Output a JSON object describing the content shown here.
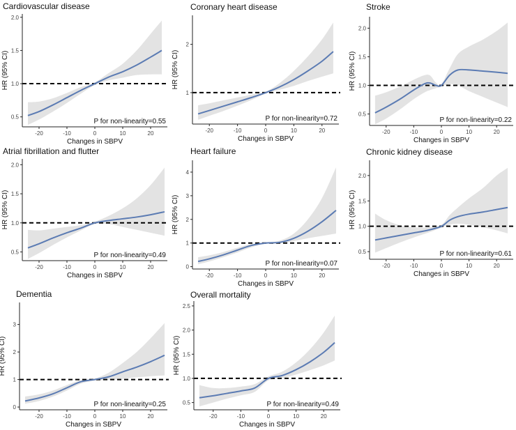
{
  "figure": {
    "line_color": "#5b7bb3",
    "band_color": "#e3e3e3",
    "ref_color": "#000000"
  },
  "chart_data": [
    {
      "type": "line",
      "title": "Cardiovascular disease",
      "xlabel": "Changes in SBPV",
      "ylabel": "HR (95% CI)",
      "xlim": [
        -26,
        26
      ],
      "ylim": [
        0.35,
        2.05
      ],
      "xticks": [
        -20,
        -10,
        0,
        10,
        20
      ],
      "yticks": [
        0.5,
        1.0,
        1.5,
        2.0
      ],
      "ytick_labels": [
        "0.5",
        "1.0",
        "1.5",
        "2.0"
      ],
      "ref_y": 1.0,
      "p_text": "P for non-linearity=0.55",
      "series": [
        {
          "name": "HR",
          "x": [
            -24,
            -20,
            -15,
            -10,
            -5,
            0,
            5,
            10,
            15,
            20,
            24
          ],
          "y": [
            0.52,
            0.58,
            0.68,
            0.79,
            0.9,
            1.0,
            1.1,
            1.18,
            1.28,
            1.4,
            1.5
          ]
        },
        {
          "name": "95% CI lower",
          "x": [
            -24,
            -20,
            -15,
            -10,
            -5,
            0,
            5,
            10,
            15,
            20,
            24
          ],
          "y": [
            0.38,
            0.46,
            0.58,
            0.71,
            0.85,
            0.98,
            1.05,
            1.09,
            1.13,
            1.14,
            1.14
          ]
        },
        {
          "name": "95% CI upper",
          "x": [
            -24,
            -20,
            -15,
            -10,
            -5,
            0,
            5,
            10,
            15,
            20,
            24
          ],
          "y": [
            0.72,
            0.73,
            0.78,
            0.86,
            0.95,
            1.02,
            1.16,
            1.3,
            1.5,
            1.75,
            1.95
          ]
        }
      ]
    },
    {
      "type": "line",
      "title": "Coronary heart disease",
      "xlabel": "Changes in SBPV",
      "ylabel": "HR (95% CI)",
      "xlim": [
        -26,
        26
      ],
      "ylim": [
        0.35,
        2.6
      ],
      "xticks": [
        -20,
        -10,
        0,
        10,
        20
      ],
      "yticks": [
        1,
        2
      ],
      "ytick_labels": [
        "1",
        "2"
      ],
      "ref_y": 1.0,
      "p_text": "P for non-linearity=0.72",
      "series": [
        {
          "name": "HR",
          "x": [
            -24,
            -20,
            -15,
            -10,
            -5,
            0,
            5,
            10,
            15,
            20,
            24
          ],
          "y": [
            0.56,
            0.63,
            0.72,
            0.81,
            0.9,
            1.0,
            1.12,
            1.27,
            1.45,
            1.65,
            1.85
          ]
        },
        {
          "name": "95% CI lower",
          "x": [
            -24,
            -20,
            -15,
            -10,
            -5,
            0,
            5,
            10,
            15,
            20,
            24
          ],
          "y": [
            0.44,
            0.52,
            0.62,
            0.73,
            0.85,
            0.98,
            1.06,
            1.14,
            1.24,
            1.33,
            1.4
          ]
        },
        {
          "name": "95% CI upper",
          "x": [
            -24,
            -20,
            -15,
            -10,
            -5,
            0,
            5,
            10,
            15,
            20,
            24
          ],
          "y": [
            0.74,
            0.78,
            0.84,
            0.9,
            0.96,
            1.02,
            1.2,
            1.45,
            1.75,
            2.1,
            2.45
          ]
        }
      ]
    },
    {
      "type": "line",
      "title": "Stroke",
      "xlabel": "Changes in SBPV",
      "ylabel": "HR (95% CI)",
      "xlim": [
        -26,
        26
      ],
      "ylim": [
        0.3,
        2.2
      ],
      "xticks": [
        -20,
        -10,
        0,
        10,
        20
      ],
      "yticks": [
        0.5,
        1.0,
        1.5,
        2.0
      ],
      "ytick_labels": [
        "0.5",
        "1.0",
        "1.5",
        "2.0"
      ],
      "ref_y": 1.0,
      "p_text": "P for non-linearity=0.22",
      "series": [
        {
          "name": "HR",
          "x": [
            -24,
            -20,
            -15,
            -10,
            -6,
            -4,
            -2,
            0,
            3,
            6,
            10,
            15,
            20,
            24
          ],
          "y": [
            0.52,
            0.62,
            0.76,
            0.92,
            1.03,
            1.04,
            1.0,
            1.0,
            1.18,
            1.27,
            1.27,
            1.25,
            1.23,
            1.21
          ]
        },
        {
          "name": "95% CI lower",
          "x": [
            -24,
            -20,
            -15,
            -10,
            -6,
            -4,
            -2,
            0,
            3,
            6,
            10,
            15,
            20,
            24
          ],
          "y": [
            0.32,
            0.42,
            0.58,
            0.76,
            0.88,
            0.92,
            0.95,
            0.98,
            1.02,
            1.0,
            0.9,
            0.8,
            0.7,
            0.62
          ]
        },
        {
          "name": "95% CI upper",
          "x": [
            -24,
            -20,
            -15,
            -10,
            -6,
            -4,
            -2,
            0,
            3,
            6,
            10,
            15,
            20,
            24
          ],
          "y": [
            0.82,
            0.88,
            0.98,
            1.1,
            1.18,
            1.17,
            1.05,
            1.02,
            1.3,
            1.55,
            1.68,
            1.8,
            1.95,
            2.1
          ]
        }
      ]
    },
    {
      "type": "line",
      "title": "Atrial fibrillation and flutter",
      "xlabel": "Changes in SBPV",
      "ylabel": "HR (95% CI)",
      "xlim": [
        -26,
        26
      ],
      "ylim": [
        0.35,
        2.1
      ],
      "xticks": [
        -20,
        -10,
        0,
        10,
        20
      ],
      "yticks": [
        0.5,
        1.0,
        1.5,
        2.0
      ],
      "ytick_labels": [
        "0.5",
        "1.0",
        "1.5",
        "2.0"
      ],
      "ref_y": 1.0,
      "p_text": "P for non-linearity=0.49",
      "series": [
        {
          "name": "HR",
          "x": [
            -24,
            -20,
            -15,
            -10,
            -5,
            0,
            5,
            10,
            15,
            20,
            25
          ],
          "y": [
            0.57,
            0.64,
            0.74,
            0.83,
            0.91,
            1.0,
            1.04,
            1.07,
            1.1,
            1.14,
            1.19
          ]
        },
        {
          "name": "95% CI lower",
          "x": [
            -24,
            -20,
            -15,
            -10,
            -5,
            0,
            5,
            10,
            15,
            20,
            25
          ],
          "y": [
            0.38,
            0.48,
            0.62,
            0.75,
            0.87,
            0.98,
            0.98,
            0.93,
            0.88,
            0.83,
            0.78
          ]
        },
        {
          "name": "95% CI upper",
          "x": [
            -24,
            -20,
            -15,
            -10,
            -5,
            0,
            5,
            10,
            15,
            20,
            25
          ],
          "y": [
            0.88,
            0.87,
            0.9,
            0.93,
            0.96,
            1.02,
            1.12,
            1.25,
            1.42,
            1.65,
            1.95
          ]
        }
      ]
    },
    {
      "type": "line",
      "title": "Heart failure",
      "xlabel": "Changes in SBPV",
      "ylabel": "HR (95% CI)",
      "xlim": [
        -26,
        26
      ],
      "ylim": [
        -0.1,
        4.5
      ],
      "xticks": [
        -20,
        -10,
        0,
        10,
        20
      ],
      "yticks": [
        0,
        1,
        2,
        3,
        4
      ],
      "ytick_labels": [
        "0",
        "1",
        "2",
        "3",
        "4"
      ],
      "ref_y": 1.0,
      "p_text": "P for non-linearity=0.07",
      "series": [
        {
          "name": "HR",
          "x": [
            -24,
            -20,
            -15,
            -10,
            -5,
            0,
            5,
            10,
            15,
            20,
            25
          ],
          "y": [
            0.22,
            0.33,
            0.5,
            0.7,
            0.9,
            1.0,
            1.03,
            1.2,
            1.5,
            1.9,
            2.38
          ]
        },
        {
          "name": "95% CI lower",
          "x": [
            -24,
            -20,
            -15,
            -10,
            -5,
            0,
            5,
            10,
            15,
            20,
            25
          ],
          "y": [
            0.1,
            0.22,
            0.4,
            0.6,
            0.82,
            0.97,
            0.98,
            1.08,
            1.2,
            1.3,
            1.4
          ]
        },
        {
          "name": "95% CI upper",
          "x": [
            -24,
            -20,
            -15,
            -10,
            -5,
            0,
            5,
            10,
            15,
            20,
            25
          ],
          "y": [
            0.4,
            0.48,
            0.62,
            0.8,
            0.96,
            1.03,
            1.1,
            1.4,
            2.0,
            2.9,
            4.2
          ]
        }
      ]
    },
    {
      "type": "line",
      "title": "Chronic kidney disease",
      "xlabel": "Changes in SBPV",
      "ylabel": "HR (95% CI)",
      "xlim": [
        -26,
        26
      ],
      "ylim": [
        0.35,
        2.3
      ],
      "xticks": [
        -20,
        -10,
        0,
        10,
        20
      ],
      "yticks": [
        0.5,
        1.0,
        1.5,
        2.0
      ],
      "ytick_labels": [
        "0.5",
        "1.0",
        "1.5",
        "2.0"
      ],
      "ref_y": 1.0,
      "p_text": "P for non-linearity=0.61",
      "series": [
        {
          "name": "HR",
          "x": [
            -24,
            -20,
            -15,
            -10,
            -5,
            0,
            3,
            6,
            10,
            15,
            20,
            24
          ],
          "y": [
            0.73,
            0.77,
            0.82,
            0.87,
            0.92,
            1.0,
            1.12,
            1.19,
            1.24,
            1.28,
            1.33,
            1.37
          ]
        },
        {
          "name": "95% CI lower",
          "x": [
            -24,
            -20,
            -15,
            -10,
            -5,
            0,
            3,
            6,
            10,
            15,
            20,
            24
          ],
          "y": [
            0.48,
            0.57,
            0.68,
            0.78,
            0.87,
            0.97,
            1.03,
            1.05,
            1.03,
            0.98,
            0.92,
            0.86
          ]
        },
        {
          "name": "95% CI upper",
          "x": [
            -24,
            -20,
            -15,
            -10,
            -5,
            0,
            3,
            6,
            10,
            15,
            20,
            24
          ],
          "y": [
            1.25,
            1.12,
            1.02,
            0.98,
            0.98,
            1.03,
            1.22,
            1.37,
            1.55,
            1.75,
            2.0,
            2.15
          ]
        }
      ]
    },
    {
      "type": "line",
      "title": "Dementia",
      "xlabel": "Changes in SBPV",
      "ylabel": "HR (95% CI)",
      "xlim": [
        -27,
        26
      ],
      "ylim": [
        -0.1,
        3.8
      ],
      "xticks": [
        -20,
        -10,
        0,
        10,
        20
      ],
      "yticks": [
        0,
        1,
        2,
        3
      ],
      "ytick_labels": [
        "0",
        "1",
        "2",
        "3"
      ],
      "ref_y": 1.0,
      "p_text": "P for non-linearity=0.25",
      "series": [
        {
          "name": "HR",
          "x": [
            -25,
            -20,
            -15,
            -10,
            -5,
            0,
            5,
            10,
            15,
            20,
            25
          ],
          "y": [
            0.22,
            0.33,
            0.48,
            0.7,
            0.92,
            1.0,
            1.1,
            1.28,
            1.45,
            1.65,
            1.88
          ]
        },
        {
          "name": "95% CI lower",
          "x": [
            -25,
            -20,
            -15,
            -10,
            -5,
            0,
            5,
            10,
            15,
            20,
            25
          ],
          "y": [
            0.12,
            0.22,
            0.38,
            0.6,
            0.85,
            0.96,
            0.98,
            1.02,
            1.08,
            1.12,
            1.15
          ]
        },
        {
          "name": "95% CI upper",
          "x": [
            -25,
            -20,
            -15,
            -10,
            -5,
            0,
            5,
            10,
            15,
            20,
            25
          ],
          "y": [
            0.38,
            0.46,
            0.6,
            0.8,
            0.98,
            1.04,
            1.25,
            1.6,
            2.0,
            2.5,
            3.05
          ]
        }
      ]
    },
    {
      "type": "line",
      "title": "Overall mortality",
      "xlabel": "Changes in SBPV",
      "ylabel": "HR (95% CI)",
      "xlim": [
        -27,
        26
      ],
      "ylim": [
        0.35,
        2.6
      ],
      "xticks": [
        -20,
        -10,
        0,
        10,
        20
      ],
      "yticks": [
        0.5,
        1.0,
        1.5,
        2.0,
        2.5
      ],
      "ytick_labels": [
        "0.5",
        "1.0",
        "1.5",
        "2.0",
        "2.5"
      ],
      "ref_y": 1.0,
      "p_text": "P for non-linearity=0.49",
      "series": [
        {
          "name": "HR",
          "x": [
            -25,
            -20,
            -15,
            -10,
            -5,
            0,
            5,
            10,
            15,
            20,
            24
          ],
          "y": [
            0.6,
            0.64,
            0.69,
            0.74,
            0.8,
            1.0,
            1.06,
            1.18,
            1.34,
            1.54,
            1.74
          ]
        },
        {
          "name": "95% CI lower",
          "x": [
            -25,
            -20,
            -15,
            -10,
            -5,
            0,
            5,
            10,
            15,
            20,
            24
          ],
          "y": [
            0.42,
            0.5,
            0.58,
            0.65,
            0.72,
            0.96,
            1.0,
            1.08,
            1.17,
            1.27,
            1.37
          ]
        },
        {
          "name": "95% CI upper",
          "x": [
            -25,
            -20,
            -15,
            -10,
            -5,
            0,
            5,
            10,
            15,
            20,
            24
          ],
          "y": [
            0.86,
            0.8,
            0.8,
            0.83,
            0.88,
            1.04,
            1.14,
            1.33,
            1.6,
            1.95,
            2.3
          ]
        }
      ]
    }
  ]
}
